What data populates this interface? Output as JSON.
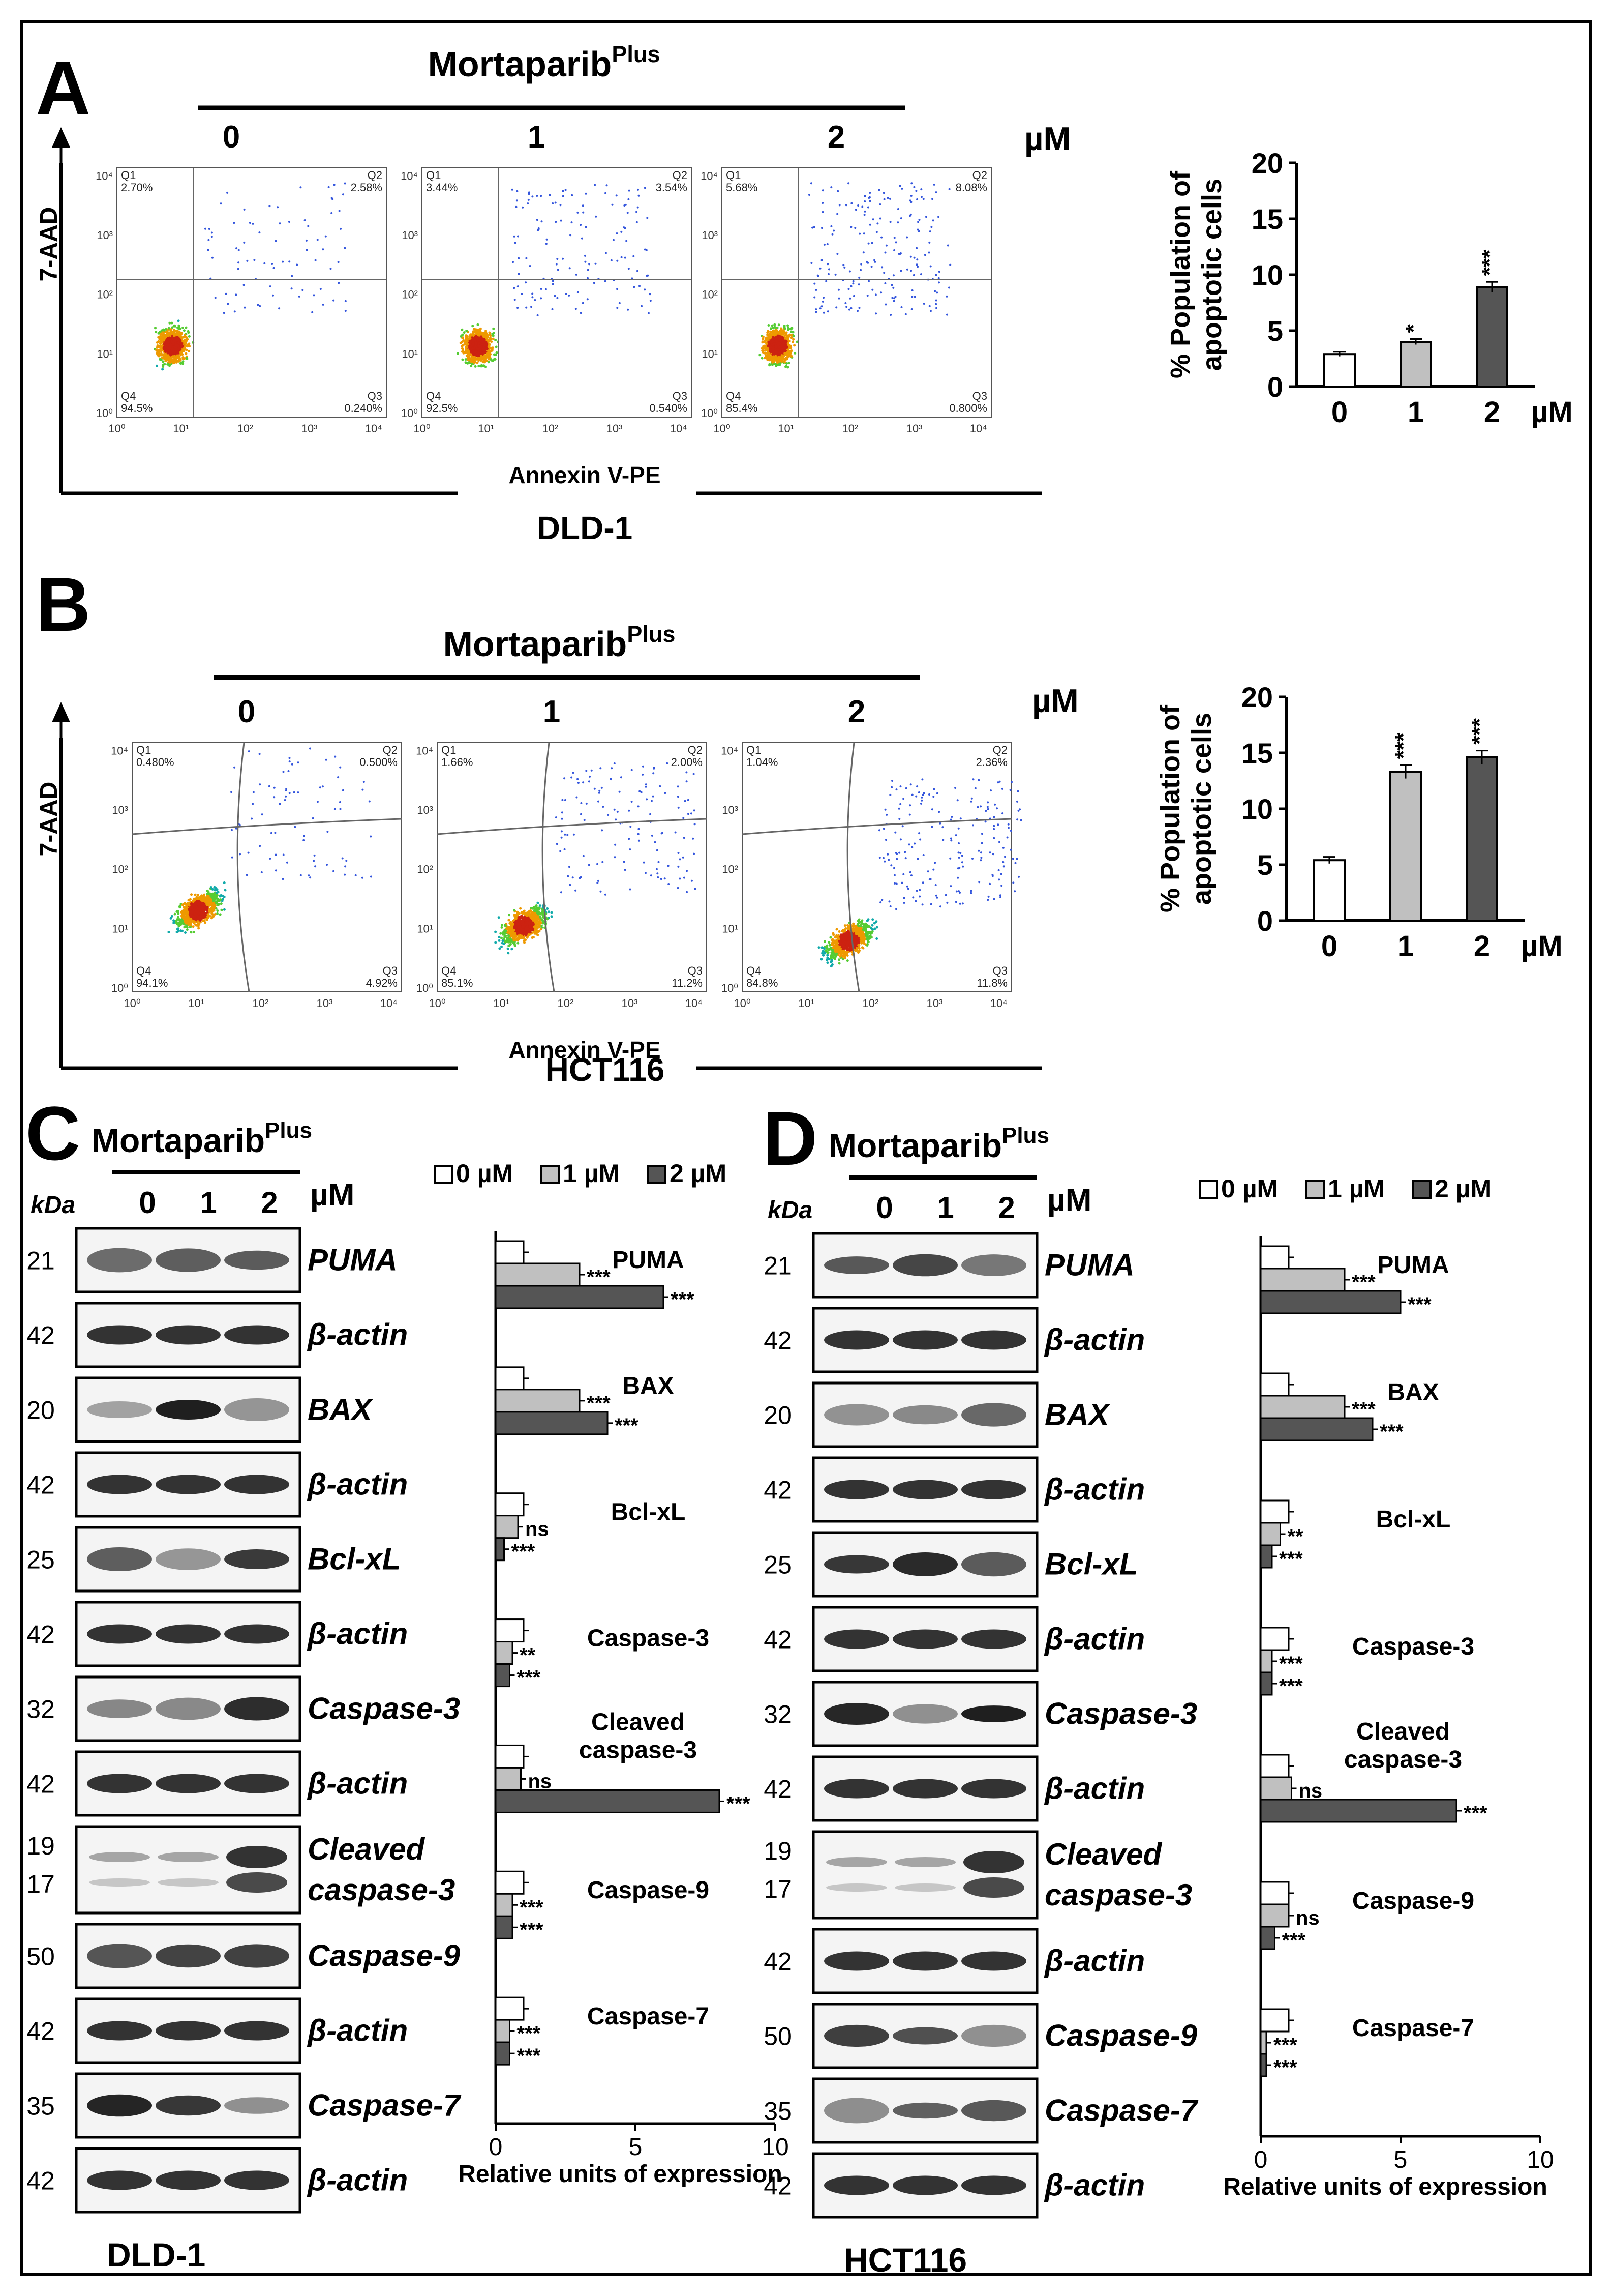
{
  "panels": {
    "A": {
      "letter": "A",
      "drug": "Mortaparib",
      "drug_sup": "Plus",
      "unit": "µM",
      "cell_line": "DLD-1",
      "y_axis": "7-AAD",
      "x_axis": "Annexin V-PE",
      "plots": [
        {
          "dose": "0",
          "q1": "2.70%",
          "q2": "2.58%",
          "q3": "0.240%",
          "q4": "94.5%"
        },
        {
          "dose": "1",
          "q1": "3.44%",
          "q2": "3.54%",
          "q3": "0.540%",
          "q4": "92.5%"
        },
        {
          "dose": "2",
          "q1": "5.68%",
          "q2": "8.08%",
          "q3": "0.800%",
          "q4": "85.4%"
        }
      ]
    },
    "B": {
      "letter": "B",
      "drug": "Mortaparib",
      "drug_sup": "Plus",
      "unit": "µM",
      "cell_line": "HCT116",
      "y_axis": "7-AAD",
      "x_axis": "Annexin V-PE",
      "plots": [
        {
          "dose": "0",
          "q1": "0.480%",
          "q2": "0.500%",
          "q3": "4.92%",
          "q4": "94.1%"
        },
        {
          "dose": "1",
          "q1": "1.66%",
          "q2": "2.00%",
          "q3": "11.2%",
          "q4": "85.1%"
        },
        {
          "dose": "2",
          "q1": "1.04%",
          "q2": "2.36%",
          "q3": "11.8%",
          "q4": "84.8%"
        }
      ]
    },
    "C": {
      "letter": "C",
      "drug": "Mortaparib",
      "drug_sup": "Plus",
      "unit": "µM",
      "kda": "kDa",
      "doses": [
        "0",
        "1",
        "2"
      ],
      "cell_line": "DLD-1",
      "blots": [
        {
          "kda": "21",
          "label": "PUMA"
        },
        {
          "kda": "42",
          "label": "β-actin"
        },
        {
          "kda": "20",
          "label": "BAX"
        },
        {
          "kda": "42",
          "label": "β-actin"
        },
        {
          "kda": "25",
          "label": "Bcl-xL"
        },
        {
          "kda": "42",
          "label": "β-actin"
        },
        {
          "kda": "32",
          "label": "Caspase-3"
        },
        {
          "kda": "42",
          "label": "β-actin"
        },
        {
          "kda": "19",
          "kda2": "17",
          "label": "Cleaved",
          "label2": "caspase-3"
        },
        {
          "kda": "50",
          "label": "Caspase-9"
        },
        {
          "kda": "42",
          "label": "β-actin"
        },
        {
          "kda": "35",
          "label": "Caspase-7"
        },
        {
          "kda": "42",
          "label": "β-actin"
        }
      ]
    },
    "D": {
      "letter": "D",
      "drug": "Mortaparib",
      "drug_sup": "Plus",
      "unit": "µM",
      "kda": "kDa",
      "doses": [
        "0",
        "1",
        "2"
      ],
      "cell_line": "HCT116",
      "blots": [
        {
          "kda": "21",
          "label": "PUMA"
        },
        {
          "kda": "42",
          "label": "β-actin"
        },
        {
          "kda": "20",
          "label": "BAX"
        },
        {
          "kda": "42",
          "label": "β-actin"
        },
        {
          "kda": "25",
          "label": "Bcl-xL"
        },
        {
          "kda": "42",
          "label": "β-actin"
        },
        {
          "kda": "32",
          "label": "Caspase-3"
        },
        {
          "kda": "42",
          "label": "β-actin"
        },
        {
          "kda": "19",
          "kda2": "17",
          "label": "Cleaved",
          "label2": "caspase-3"
        },
        {
          "kda": "42",
          "label": "β-actin"
        },
        {
          "kda": "50",
          "label": "Caspase-9"
        },
        {
          "kda": "35",
          "label": "Caspase-7"
        },
        {
          "kda": "42",
          "label": "β-actin"
        }
      ]
    }
  },
  "colors": {
    "bar0": "#ffffff",
    "bar1": "#c0c0c0",
    "bar2": "#555555",
    "ink": "#000000"
  },
  "chart_data": [
    {
      "id": "A-bar",
      "type": "bar",
      "categories": [
        "0",
        "1",
        "2"
      ],
      "x_unit": "µM",
      "values": [
        2.9,
        4.0,
        8.9
      ],
      "errors": [
        0.2,
        0.25,
        0.45
      ],
      "significance": [
        "",
        "*",
        "***"
      ],
      "ylabel": "% Population of apoptotic cells",
      "ylabel_lines": [
        "% Population of",
        "apoptotic cells"
      ],
      "ylim": [
        0,
        20
      ],
      "yticks": [
        "0",
        "5",
        "10",
        "15",
        "20"
      ]
    },
    {
      "id": "B-bar",
      "type": "bar",
      "categories": [
        "0",
        "1",
        "2"
      ],
      "x_unit": "µM",
      "values": [
        5.4,
        13.3,
        14.6
      ],
      "errors": [
        0.3,
        0.6,
        0.6
      ],
      "significance": [
        "",
        "***",
        "***"
      ],
      "ylabel": "% Population of apoptotic cells",
      "ylabel_lines": [
        "% Population of",
        "apoptotic cells"
      ],
      "ylim": [
        0,
        20
      ],
      "yticks": [
        "0",
        "5",
        "10",
        "15",
        "20"
      ]
    },
    {
      "id": "C-bar",
      "type": "bar",
      "orientation": "horizontal",
      "legend": [
        "0 µM",
        "1 µM",
        "2 µM"
      ],
      "xlabel": "Relative units of expression",
      "xlim": [
        0,
        10
      ],
      "xticks": [
        "0",
        "5",
        "10"
      ],
      "groups": [
        {
          "label": [
            "PUMA"
          ],
          "values": [
            1,
            3,
            6
          ],
          "sig": [
            "",
            "***",
            "***"
          ]
        },
        {
          "label": [
            "BAX"
          ],
          "values": [
            1,
            3,
            4
          ],
          "sig": [
            "",
            "***",
            "***"
          ]
        },
        {
          "label": [
            "Bcl-xL"
          ],
          "values": [
            1,
            0.8,
            0.3
          ],
          "sig": [
            "",
            "ns",
            "***"
          ]
        },
        {
          "label": [
            "Caspase-3"
          ],
          "values": [
            1,
            0.6,
            0.5
          ],
          "sig": [
            "",
            "**",
            "***"
          ]
        },
        {
          "label": [
            "Cleaved",
            "caspase-3"
          ],
          "values": [
            1,
            0.9,
            8
          ],
          "sig": [
            "",
            "ns",
            "***"
          ]
        },
        {
          "label": [
            "Caspase-9"
          ],
          "values": [
            1,
            0.6,
            0.6
          ],
          "sig": [
            "",
            "***",
            "***"
          ]
        },
        {
          "label": [
            "Caspase-7"
          ],
          "values": [
            1,
            0.5,
            0.5
          ],
          "sig": [
            "",
            "***",
            "***"
          ]
        }
      ]
    },
    {
      "id": "D-bar",
      "type": "bar",
      "orientation": "horizontal",
      "legend": [
        "0 µM",
        "1 µM",
        "2 µM"
      ],
      "xlabel": "Relative units of expression",
      "xlim": [
        0,
        10
      ],
      "xticks": [
        "0",
        "5",
        "10"
      ],
      "groups": [
        {
          "label": [
            "PUMA"
          ],
          "values": [
            1,
            3,
            5
          ],
          "sig": [
            "",
            "***",
            "***"
          ]
        },
        {
          "label": [
            "BAX"
          ],
          "values": [
            1,
            3,
            4
          ],
          "sig": [
            "",
            "***",
            "***"
          ]
        },
        {
          "label": [
            "Bcl-xL"
          ],
          "values": [
            1,
            0.7,
            0.4
          ],
          "sig": [
            "",
            "**",
            "***"
          ]
        },
        {
          "label": [
            "Caspase-3"
          ],
          "values": [
            1,
            0.4,
            0.4
          ],
          "sig": [
            "",
            "***",
            "***"
          ]
        },
        {
          "label": [
            "Cleaved",
            "caspase-3"
          ],
          "values": [
            1,
            1.1,
            7
          ],
          "sig": [
            "",
            "ns",
            "***"
          ]
        },
        {
          "label": [
            "Caspase-9"
          ],
          "values": [
            1,
            1,
            0.5
          ],
          "sig": [
            "",
            "ns",
            "***"
          ]
        },
        {
          "label": [
            "Caspase-7"
          ],
          "values": [
            1,
            0.2,
            0.2
          ],
          "sig": [
            "",
            "***",
            "***"
          ]
        }
      ]
    }
  ]
}
